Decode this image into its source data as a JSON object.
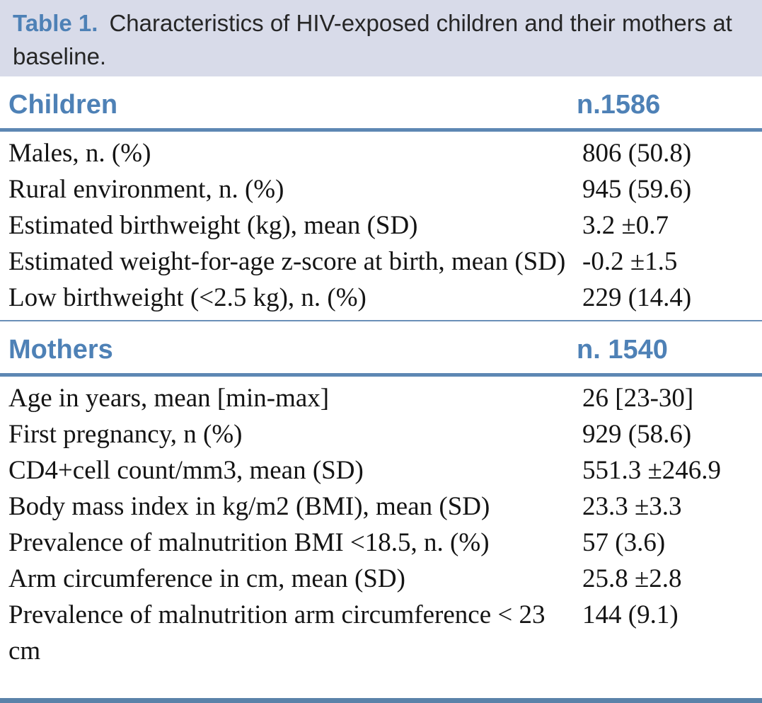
{
  "caption": {
    "label": "Table 1.",
    "text": "Characteristics of HIV-exposed children and their mothers at baseline."
  },
  "colors": {
    "accent_blue": "#4e81b6",
    "rule_blue": "#5d87b3",
    "caption_bg": "#d8dbe9",
    "bottom_bar": "#5b82a9",
    "body_text": "#141414"
  },
  "sections": [
    {
      "name": "Children",
      "count": "n.1586",
      "rows": [
        {
          "label": "Males, n. (%)",
          "value": "806 (50.8)"
        },
        {
          "label": "Rural environment, n. (%)",
          "value": "945 (59.6)"
        },
        {
          "label": "Estimated birthweight (kg), mean (SD)",
          "value": "3.2 ±0.7"
        },
        {
          "label": "Estimated weight-for-age z-score at birth, mean (SD)",
          "value": "-0.2 ±1.5"
        },
        {
          "label": "Low birthweight (<2.5 kg), n. (%)",
          "value": "229 (14.4)"
        }
      ]
    },
    {
      "name": "Mothers",
      "count": "n. 1540",
      "rows": [
        {
          "label": "Age in years, mean [min-max]",
          "value": "26 [23-30]"
        },
        {
          "label": "First pregnancy, n (%)",
          "value": "929 (58.6)"
        },
        {
          "label": "CD4+cell count/mm3, mean (SD)",
          "value": "551.3 ±246.9"
        },
        {
          "label": "Body mass index in kg/m2 (BMI), mean (SD)",
          "value": "23.3 ±3.3"
        },
        {
          "label": "Prevalence of malnutrition BMI <18.5, n. (%)",
          "value": "57 (3.6)"
        },
        {
          "label": "Arm circumference in cm, mean (SD)",
          "value": "25.8 ±2.8"
        },
        {
          "label": "Prevalence of malnutrition arm circumference < 23 cm",
          "value": "144 (9.1)"
        }
      ]
    }
  ],
  "chart_data": {
    "type": "table",
    "title": "Table 1. Characteristics of HIV-exposed children and their mothers at baseline.",
    "columns": [
      "Characteristic",
      "Value"
    ],
    "groups": [
      {
        "group": "Children (n.1586)",
        "rows": [
          [
            "Males, n. (%)",
            "806 (50.8)"
          ],
          [
            "Rural environment, n. (%)",
            "945 (59.6)"
          ],
          [
            "Estimated birthweight (kg), mean (SD)",
            "3.2 ±0.7"
          ],
          [
            "Estimated weight-for-age z-score at birth, mean (SD)",
            "-0.2 ±1.5"
          ],
          [
            "Low birthweight (<2.5 kg), n. (%)",
            "229 (14.4)"
          ]
        ]
      },
      {
        "group": "Mothers (n. 1540)",
        "rows": [
          [
            "Age in years, mean [min-max]",
            "26 [23-30]"
          ],
          [
            "First pregnancy, n (%)",
            "929 (58.6)"
          ],
          [
            "CD4+cell count/mm3, mean (SD)",
            "551.3 ±246.9"
          ],
          [
            "Body mass index in kg/m2 (BMI), mean (SD)",
            "23.3 ±3.3"
          ],
          [
            "Prevalence of malnutrition BMI <18.5, n. (%)",
            "57 (3.6)"
          ],
          [
            "Arm circumference in cm, mean (SD)",
            "25.8 ±2.8"
          ],
          [
            "Prevalence of malnutrition arm circumference < 23 cm",
            "144 (9.1)"
          ]
        ]
      }
    ]
  }
}
